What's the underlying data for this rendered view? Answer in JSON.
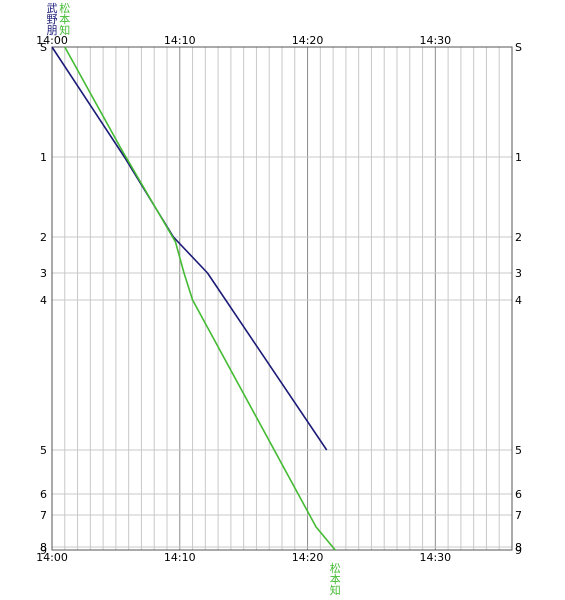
{
  "chart_data": {
    "type": "line",
    "title": "",
    "xlabel": "",
    "ylabel": "",
    "x_unit": "time",
    "xlim": [
      "14:00",
      "14:36"
    ],
    "x_ticks": [
      "14:00",
      "14:10",
      "14:20",
      "14:30"
    ],
    "grid": true,
    "stations": [
      {
        "label": "S",
        "pos": 0
      },
      {
        "label": "1",
        "pos": 110
      },
      {
        "label": "2",
        "pos": 190
      },
      {
        "label": "3",
        "pos": 226
      },
      {
        "label": "4",
        "pos": 253
      },
      {
        "label": "5",
        "pos": 403
      },
      {
        "label": "6",
        "pos": 447
      },
      {
        "label": "7",
        "pos": 468
      },
      {
        "label": "8",
        "pos": 500
      },
      {
        "label": "9",
        "pos": 503
      }
    ],
    "series": [
      {
        "name": "武野朋",
        "color": "#1c1c78",
        "start_label_chars": [
          "武",
          "野",
          "朋"
        ],
        "end_label_chars": [],
        "points": [
          {
            "t": "14:00:00",
            "pos": 0
          },
          {
            "t": "14:05:40",
            "pos": 110
          },
          {
            "t": "14:09:30",
            "pos": 190
          },
          {
            "t": "14:12:10",
            "pos": 226
          },
          {
            "t": "14:21:30",
            "pos": 403
          }
        ]
      },
      {
        "name": "松本知",
        "color": "#44bb33",
        "start_label_chars": [
          "松",
          "本",
          "知"
        ],
        "end_label_chars": [
          "松",
          "本",
          "知"
        ],
        "points": [
          {
            "t": "14:01:00",
            "pos": 0
          },
          {
            "t": "14:05:20",
            "pos": 100
          },
          {
            "t": "14:09:40",
            "pos": 195
          },
          {
            "t": "14:10:20",
            "pos": 226
          },
          {
            "t": "14:11:00",
            "pos": 253
          },
          {
            "t": "14:20:40",
            "pos": 480
          },
          {
            "t": "14:22:10",
            "pos": 503
          }
        ]
      }
    ]
  }
}
